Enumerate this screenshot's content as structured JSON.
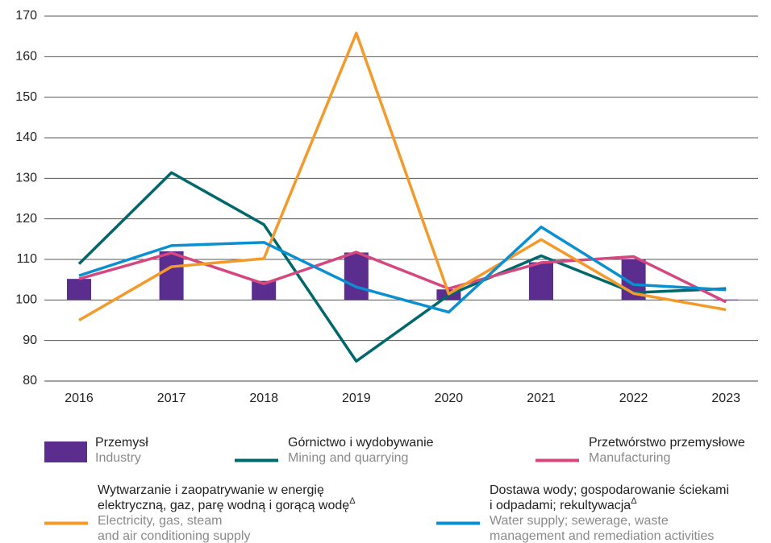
{
  "chart_data": {
    "type": "bar-line",
    "categories": [
      "2016",
      "2017",
      "2018",
      "2019",
      "2020",
      "2021",
      "2022",
      "2023"
    ],
    "ylim": [
      80,
      170
    ],
    "yticks": [
      80,
      90,
      100,
      110,
      120,
      130,
      140,
      150,
      160,
      170
    ],
    "grid": true,
    "bar_base": 100,
    "series": [
      {
        "kind": "bar",
        "name_lines": [
          "Przemysł"
        ],
        "en_lines": [
          "Industry"
        ],
        "color": "#5a2d8f",
        "values": [
          105.2,
          112.0,
          104.7,
          111.7,
          102.6,
          109.3,
          110.1,
          100.1
        ]
      },
      {
        "kind": "line",
        "name_lines": [
          "Górnictwo i wydobywanie"
        ],
        "en_lines": [
          "Mining and quarrying"
        ],
        "color": "#00676a",
        "values": [
          108.9,
          131.4,
          118.6,
          84.9,
          101.2,
          110.9,
          101.8,
          102.8
        ]
      },
      {
        "kind": "line",
        "name_lines": [
          "Przetwórstwo przemysłowe"
        ],
        "en_lines": [
          "Manufacturing"
        ],
        "color": "#d5477f",
        "values": [
          105.2,
          111.6,
          104.0,
          111.8,
          102.8,
          109.2,
          110.7,
          99.5
        ]
      },
      {
        "kind": "line",
        "name_lines": [
          "Wytwarzanie i zaopatrywanie w energię",
          "elektryczną, gaz, parę wodną i gorącą wodę"
        ],
        "mark": "Δ",
        "en_lines": [
          "Electricity, gas, steam",
          "and air conditioning supply"
        ],
        "color": "#f39a2b",
        "values": [
          95.0,
          108.2,
          110.2,
          165.8,
          101.5,
          114.9,
          101.6,
          97.6
        ]
      },
      {
        "kind": "line",
        "name_lines": [
          "Dostawa wody; gospodarowanie ściekami",
          "i odpadami; rekultywacja"
        ],
        "mark": "Δ",
        "en_lines": [
          "Water supply; sewerage, waste",
          "management and remediation activities"
        ],
        "color": "#0a8fd0",
        "values": [
          106.0,
          113.4,
          114.2,
          103.2,
          97.0,
          118.0,
          103.8,
          102.5
        ]
      }
    ]
  }
}
